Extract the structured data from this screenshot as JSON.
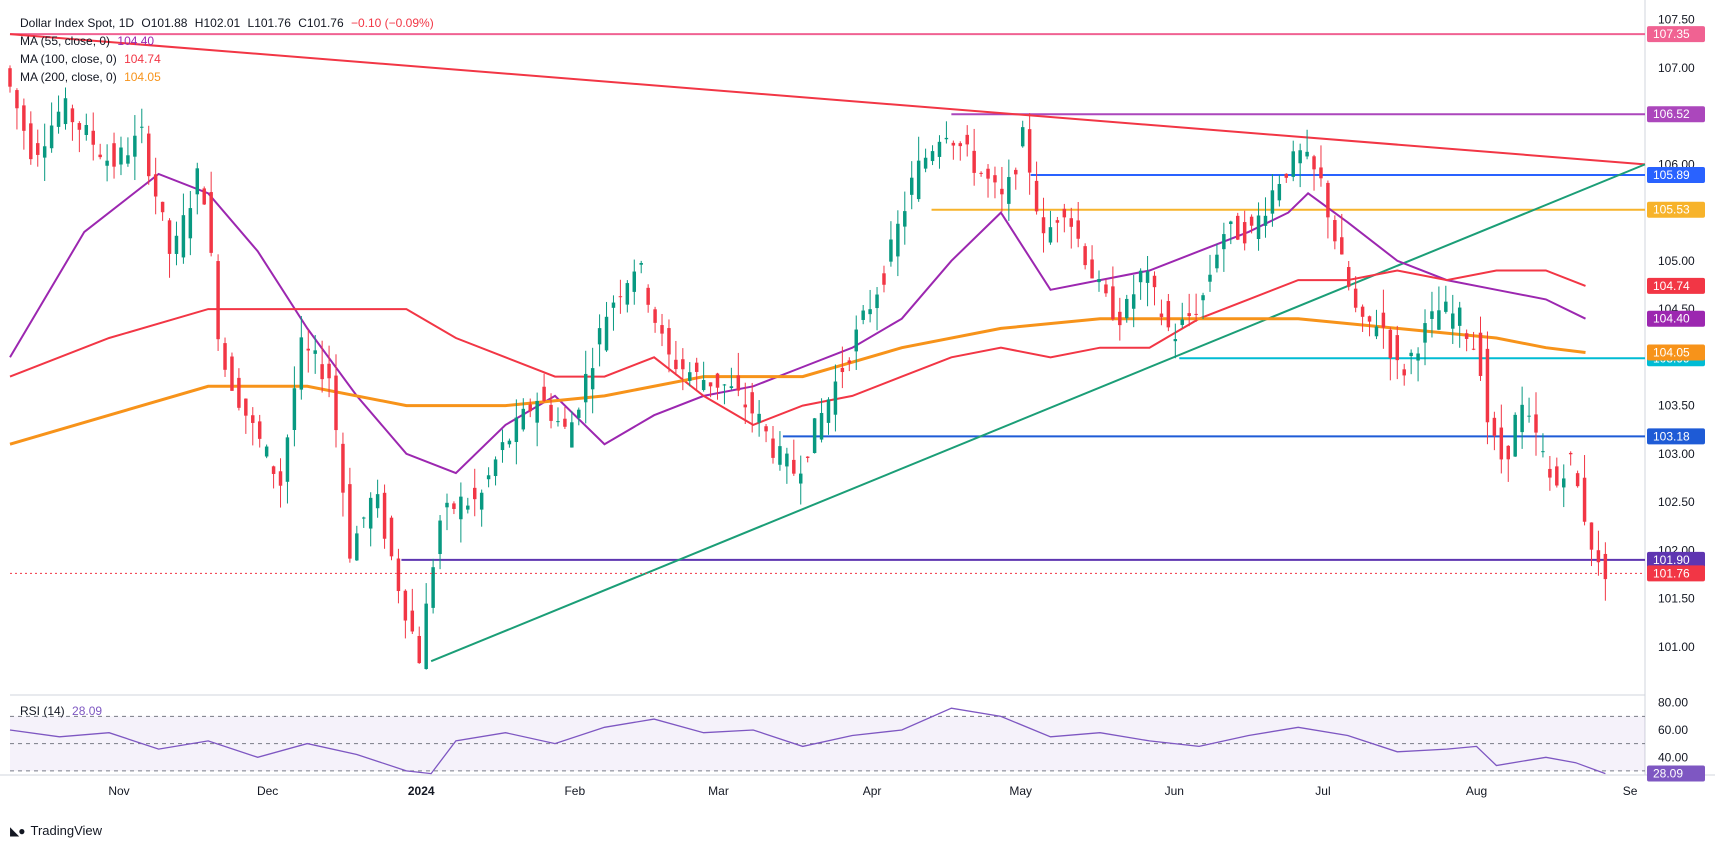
{
  "header": {
    "symbol": "Dollar Index Spot, 1D",
    "o_label": "O",
    "o": "101.88",
    "h_label": "H",
    "h": "102.01",
    "l_label": "L",
    "l": "101.76",
    "c_label": "C",
    "c": "101.76",
    "change": "−0.10 (−0.09%)"
  },
  "indicators": [
    {
      "label": "MA (55, close, 0)",
      "value": "104.40",
      "color": "#9c27b0"
    },
    {
      "label": "MA (100, close, 0)",
      "value": "104.74",
      "color": "#f23645"
    },
    {
      "label": "MA (200, close, 0)",
      "value": "104.05",
      "color": "#f7931a"
    }
  ],
  "rsi": {
    "label": "RSI (14)",
    "value": "28.09",
    "color": "#7e57c2"
  },
  "brand": {
    "name": "TradingView"
  },
  "chart_data": {
    "type": "line",
    "title": "Dollar Index Spot, 1D",
    "y_axis": {
      "range": [
        100.5,
        107.6
      ],
      "ticks": [
        "101.00",
        "101.50",
        "102.00",
        "102.50",
        "103.00",
        "103.50",
        "104.00",
        "104.50",
        "105.00",
        "105.50",
        "106.00",
        "106.50",
        "107.00",
        "107.50"
      ]
    },
    "x_axis": {
      "labels": [
        {
          "text": "Nov",
          "day": 22
        },
        {
          "text": "Dec",
          "day": 52
        },
        {
          "text": "2024",
          "day": 83
        },
        {
          "text": "Feb",
          "day": 114
        },
        {
          "text": "Mar",
          "day": 143
        },
        {
          "text": "Apr",
          "day": 174
        },
        {
          "text": "May",
          "day": 204
        },
        {
          "text": "Jun",
          "day": 235
        },
        {
          "text": "Jul",
          "day": 265
        },
        {
          "text": "Aug",
          "day": 296
        },
        {
          "text": "Se",
          "day": 327
        }
      ]
    },
    "price_path": [
      [
        0,
        107.0
      ],
      [
        6,
        106.1
      ],
      [
        12,
        106.6
      ],
      [
        22,
        106.0
      ],
      [
        28,
        106.3
      ],
      [
        34,
        105.0
      ],
      [
        40,
        106.0
      ],
      [
        44,
        104.0
      ],
      [
        50,
        103.3
      ],
      [
        56,
        102.7
      ],
      [
        60,
        104.1
      ],
      [
        66,
        103.8
      ],
      [
        70,
        102.0
      ],
      [
        75,
        102.6
      ],
      [
        80,
        101.6
      ],
      [
        84,
        100.9
      ],
      [
        88,
        102.3
      ],
      [
        92,
        102.5
      ],
      [
        96,
        102.5
      ],
      [
        100,
        103.0
      ],
      [
        108,
        103.6
      ],
      [
        114,
        103.2
      ],
      [
        122,
        104.5
      ],
      [
        128,
        105.0
      ],
      [
        134,
        104.0
      ],
      [
        140,
        103.8
      ],
      [
        146,
        103.7
      ],
      [
        152,
        103.4
      ],
      [
        156,
        103.0
      ],
      [
        160,
        102.8
      ],
      [
        166,
        103.5
      ],
      [
        172,
        104.2
      ],
      [
        178,
        104.9
      ],
      [
        184,
        105.9
      ],
      [
        190,
        106.4
      ],
      [
        196,
        106.0
      ],
      [
        202,
        105.6
      ],
      [
        206,
        106.3
      ],
      [
        210,
        105.2
      ],
      [
        214,
        105.6
      ],
      [
        218,
        105.1
      ],
      [
        222,
        104.6
      ],
      [
        226,
        104.4
      ],
      [
        230,
        104.9
      ],
      [
        236,
        104.2
      ],
      [
        242,
        104.6
      ],
      [
        246,
        105.3
      ],
      [
        252,
        105.3
      ],
      [
        258,
        105.9
      ],
      [
        262,
        106.1
      ],
      [
        266,
        105.8
      ],
      [
        270,
        105.0
      ],
      [
        274,
        104.3
      ],
      [
        278,
        104.4
      ],
      [
        282,
        103.8
      ],
      [
        286,
        104.2
      ],
      [
        290,
        104.5
      ],
      [
        294,
        104.4
      ],
      [
        298,
        104.0
      ],
      [
        300,
        103.2
      ],
      [
        303,
        102.9
      ],
      [
        306,
        103.5
      ],
      [
        310,
        103.1
      ],
      [
        313,
        102.6
      ],
      [
        316,
        103.0
      ],
      [
        319,
        102.4
      ],
      [
        322,
        101.8
      ]
    ],
    "series": [
      {
        "name": "MA (55, close, 0)",
        "color": "#9c27b0",
        "points": [
          [
            0,
            104.0
          ],
          [
            15,
            105.3
          ],
          [
            30,
            105.9
          ],
          [
            40,
            105.7
          ],
          [
            50,
            105.1
          ],
          [
            60,
            104.3
          ],
          [
            70,
            103.6
          ],
          [
            80,
            103.0
          ],
          [
            90,
            102.8
          ],
          [
            100,
            103.3
          ],
          [
            110,
            103.6
          ],
          [
            120,
            103.1
          ],
          [
            130,
            103.4
          ],
          [
            140,
            103.6
          ],
          [
            150,
            103.7
          ],
          [
            160,
            103.9
          ],
          [
            170,
            104.1
          ],
          [
            180,
            104.4
          ],
          [
            190,
            105.0
          ],
          [
            200,
            105.5
          ],
          [
            210,
            104.7
          ],
          [
            220,
            104.8
          ],
          [
            230,
            104.9
          ],
          [
            240,
            105.1
          ],
          [
            250,
            105.3
          ],
          [
            258,
            105.5
          ],
          [
            262,
            105.7
          ],
          [
            270,
            105.4
          ],
          [
            280,
            105.0
          ],
          [
            290,
            104.8
          ],
          [
            300,
            104.7
          ],
          [
            310,
            104.6
          ],
          [
            318,
            104.4
          ]
        ]
      },
      {
        "name": "MA (100, close, 0)",
        "color": "#f23645",
        "points": [
          [
            0,
            103.8
          ],
          [
            20,
            104.2
          ],
          [
            40,
            104.5
          ],
          [
            60,
            104.5
          ],
          [
            70,
            104.5
          ],
          [
            80,
            104.5
          ],
          [
            90,
            104.2
          ],
          [
            100,
            104.0
          ],
          [
            110,
            103.8
          ],
          [
            120,
            103.8
          ],
          [
            130,
            104.0
          ],
          [
            140,
            103.6
          ],
          [
            150,
            103.3
          ],
          [
            160,
            103.5
          ],
          [
            170,
            103.6
          ],
          [
            180,
            103.8
          ],
          [
            190,
            104.0
          ],
          [
            200,
            104.1
          ],
          [
            210,
            104.0
          ],
          [
            220,
            104.1
          ],
          [
            230,
            104.1
          ],
          [
            240,
            104.4
          ],
          [
            250,
            104.6
          ],
          [
            260,
            104.8
          ],
          [
            270,
            104.8
          ],
          [
            280,
            104.9
          ],
          [
            290,
            104.8
          ],
          [
            300,
            104.9
          ],
          [
            310,
            104.9
          ],
          [
            318,
            104.74
          ]
        ]
      },
      {
        "name": "MA (200, close, 0)",
        "color": "#f7931a",
        "points": [
          [
            0,
            103.1
          ],
          [
            20,
            103.4
          ],
          [
            40,
            103.7
          ],
          [
            60,
            103.7
          ],
          [
            80,
            103.5
          ],
          [
            100,
            103.5
          ],
          [
            120,
            103.6
          ],
          [
            140,
            103.8
          ],
          [
            160,
            103.8
          ],
          [
            180,
            104.1
          ],
          [
            200,
            104.3
          ],
          [
            220,
            104.4
          ],
          [
            240,
            104.4
          ],
          [
            260,
            104.4
          ],
          [
            280,
            104.3
          ],
          [
            300,
            104.2
          ],
          [
            310,
            104.1
          ],
          [
            318,
            104.05
          ]
        ]
      }
    ],
    "levels": [
      {
        "price": 107.35,
        "label": "107.35",
        "color": "#f06292",
        "from": 0,
        "to": 330
      },
      {
        "price": 106.52,
        "label": "106.52",
        "color": "#ab47bc",
        "from": 190,
        "to": 330
      },
      {
        "price": 105.89,
        "label": "105.89",
        "color": "#2962ff",
        "from": 206,
        "to": 330
      },
      {
        "price": 105.53,
        "label": "105.53",
        "color": "#f7b32b",
        "from": 186,
        "to": 330
      },
      {
        "price": 103.99,
        "label": "103.99",
        "color": "#00bcd4",
        "from": 236,
        "to": 330
      },
      {
        "price": 103.18,
        "label": "103.18",
        "color": "#1e5bd6",
        "from": 156,
        "to": 330
      },
      {
        "price": 101.9,
        "label": "101.90",
        "color": "#5e35b1",
        "from": 79,
        "to": 330
      }
    ],
    "trendlines": [
      {
        "color": "#f23645",
        "from": [
          0,
          107.35
        ],
        "to": [
          330,
          106.0
        ]
      },
      {
        "color": "#1b9e77",
        "from": [
          85,
          100.85
        ],
        "to": [
          330,
          106.0
        ]
      }
    ],
    "right_badges": [
      {
        "price": 104.74,
        "label": "104.74",
        "color": "#f23645"
      },
      {
        "price": 104.4,
        "label": "104.40",
        "color": "#9c27b0"
      },
      {
        "price": 104.05,
        "label": "104.05",
        "color": "#f7931a"
      },
      {
        "price": 101.76,
        "label": "101.76",
        "color": "#f23645"
      }
    ],
    "last_price": {
      "price": 101.76,
      "label": "101.76"
    },
    "rsi_axis": {
      "range": [
        27,
        82
      ],
      "ticks": [
        "80.00",
        "60.00",
        "40.00"
      ],
      "bands": [
        70,
        50,
        30
      ]
    },
    "rsi_path": [
      [
        0,
        60
      ],
      [
        10,
        55
      ],
      [
        20,
        58
      ],
      [
        30,
        46
      ],
      [
        40,
        52
      ],
      [
        50,
        40
      ],
      [
        60,
        50
      ],
      [
        70,
        42
      ],
      [
        80,
        30
      ],
      [
        85,
        28
      ],
      [
        90,
        52
      ],
      [
        100,
        58
      ],
      [
        110,
        50
      ],
      [
        120,
        62
      ],
      [
        130,
        68
      ],
      [
        140,
        58
      ],
      [
        150,
        60
      ],
      [
        160,
        48
      ],
      [
        170,
        56
      ],
      [
        180,
        60
      ],
      [
        190,
        76
      ],
      [
        200,
        70
      ],
      [
        210,
        55
      ],
      [
        220,
        58
      ],
      [
        230,
        52
      ],
      [
        240,
        48
      ],
      [
        250,
        56
      ],
      [
        260,
        62
      ],
      [
        270,
        56
      ],
      [
        280,
        44
      ],
      [
        290,
        46
      ],
      [
        296,
        48
      ],
      [
        300,
        34
      ],
      [
        310,
        40
      ],
      [
        316,
        36
      ],
      [
        322,
        28
      ]
    ]
  }
}
